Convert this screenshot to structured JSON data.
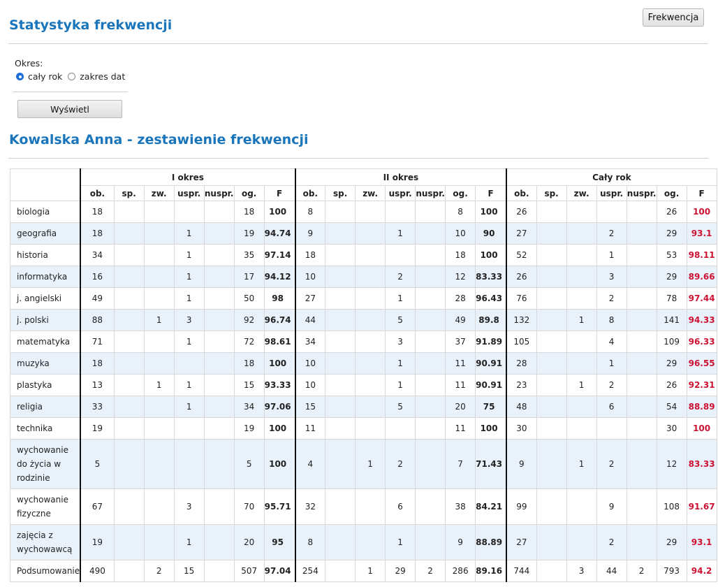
{
  "page": {
    "title": "Statystyka frekwencji",
    "top_button": "Frekwencja",
    "okres_label": "Okres:",
    "radio_full_year": "cały rok",
    "radio_date_range": "zakres dat",
    "show_button": "Wyświetl",
    "report_title": "Kowalska Anna - zestawienie frekwencji"
  },
  "table": {
    "group_headers": [
      "I okres",
      "II okres",
      "Cały rok"
    ],
    "sub_headers": [
      "ob.",
      "sp.",
      "zw.",
      "uspr.",
      "nuspr.",
      "og.",
      "F"
    ],
    "rows": [
      {
        "subject": "biologia",
        "cells": [
          "18",
          "",
          "",
          "",
          "",
          "18",
          "100",
          "8",
          "",
          "",
          "",
          "",
          "8",
          "100",
          "26",
          "",
          "",
          "",
          "",
          "26",
          "100"
        ]
      },
      {
        "subject": "geografia",
        "cells": [
          "18",
          "",
          "",
          "1",
          "",
          "19",
          "94.74",
          "9",
          "",
          "",
          "1",
          "",
          "10",
          "90",
          "27",
          "",
          "",
          "2",
          "",
          "29",
          "93.1"
        ]
      },
      {
        "subject": "historia",
        "cells": [
          "34",
          "",
          "",
          "1",
          "",
          "35",
          "97.14",
          "18",
          "",
          "",
          "",
          "",
          "18",
          "100",
          "52",
          "",
          "",
          "1",
          "",
          "53",
          "98.11"
        ]
      },
      {
        "subject": "informatyka",
        "cells": [
          "16",
          "",
          "",
          "1",
          "",
          "17",
          "94.12",
          "10",
          "",
          "",
          "2",
          "",
          "12",
          "83.33",
          "26",
          "",
          "",
          "3",
          "",
          "29",
          "89.66"
        ]
      },
      {
        "subject": "j. angielski",
        "cells": [
          "49",
          "",
          "",
          "1",
          "",
          "50",
          "98",
          "27",
          "",
          "",
          "1",
          "",
          "28",
          "96.43",
          "76",
          "",
          "",
          "2",
          "",
          "78",
          "97.44"
        ]
      },
      {
        "subject": "j. polski",
        "cells": [
          "88",
          "",
          "1",
          "3",
          "",
          "92",
          "96.74",
          "44",
          "",
          "",
          "5",
          "",
          "49",
          "89.8",
          "132",
          "",
          "1",
          "8",
          "",
          "141",
          "94.33"
        ]
      },
      {
        "subject": "matematyka",
        "cells": [
          "71",
          "",
          "",
          "1",
          "",
          "72",
          "98.61",
          "34",
          "",
          "",
          "3",
          "",
          "37",
          "91.89",
          "105",
          "",
          "",
          "4",
          "",
          "109",
          "96.33"
        ]
      },
      {
        "subject": "muzyka",
        "cells": [
          "18",
          "",
          "",
          "",
          "",
          "18",
          "100",
          "10",
          "",
          "",
          "1",
          "",
          "11",
          "90.91",
          "28",
          "",
          "",
          "1",
          "",
          "29",
          "96.55"
        ]
      },
      {
        "subject": "plastyka",
        "cells": [
          "13",
          "",
          "1",
          "1",
          "",
          "15",
          "93.33",
          "10",
          "",
          "",
          "1",
          "",
          "11",
          "90.91",
          "23",
          "",
          "1",
          "2",
          "",
          "26",
          "92.31"
        ]
      },
      {
        "subject": "religia",
        "cells": [
          "33",
          "",
          "",
          "1",
          "",
          "34",
          "97.06",
          "15",
          "",
          "",
          "5",
          "",
          "20",
          "75",
          "48",
          "",
          "",
          "6",
          "",
          "54",
          "88.89"
        ]
      },
      {
        "subject": "technika",
        "cells": [
          "19",
          "",
          "",
          "",
          "",
          "19",
          "100",
          "11",
          "",
          "",
          "",
          "",
          "11",
          "100",
          "30",
          "",
          "",
          "",
          "",
          "30",
          "100"
        ]
      },
      {
        "subject": "wychowanie do życia w rodzinie",
        "cells": [
          "5",
          "",
          "",
          "",
          "",
          "5",
          "100",
          "4",
          "",
          "1",
          "2",
          "",
          "7",
          "71.43",
          "9",
          "",
          "1",
          "2",
          "",
          "12",
          "83.33"
        ]
      },
      {
        "subject": "wychowanie fizyczne",
        "cells": [
          "67",
          "",
          "",
          "3",
          "",
          "70",
          "95.71",
          "32",
          "",
          "",
          "6",
          "",
          "38",
          "84.21",
          "99",
          "",
          "",
          "9",
          "",
          "108",
          "91.67"
        ]
      },
      {
        "subject": "zajęcia z wychowawcą",
        "cells": [
          "19",
          "",
          "",
          "1",
          "",
          "20",
          "95",
          "8",
          "",
          "",
          "1",
          "",
          "9",
          "88.89",
          "27",
          "",
          "",
          "2",
          "",
          "29",
          "93.1"
        ]
      },
      {
        "subject": "Podsumowanie",
        "cells": [
          "490",
          "",
          "2",
          "15",
          "",
          "507",
          "97.04",
          "254",
          "",
          "1",
          "29",
          "2",
          "286",
          "89.16",
          "744",
          "",
          "3",
          "44",
          "2",
          "793",
          "94.2"
        ]
      }
    ]
  }
}
